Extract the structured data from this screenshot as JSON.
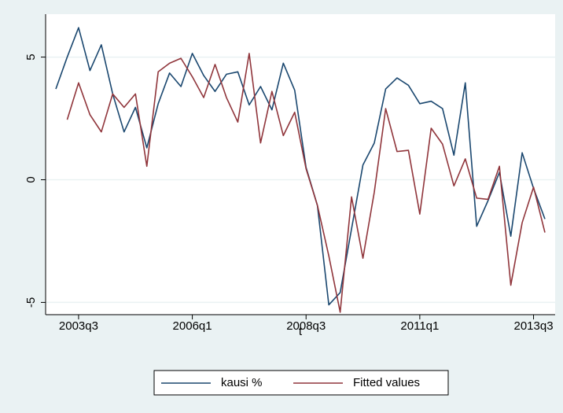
{
  "chart_data": {
    "type": "line",
    "x_label": "t",
    "categories": [
      null,
      null,
      "2003q3",
      null,
      null,
      null,
      null,
      null,
      null,
      null,
      null,
      null,
      "2006q1",
      null,
      null,
      null,
      null,
      null,
      null,
      null,
      null,
      null,
      "2008q3",
      null,
      null,
      null,
      null,
      null,
      null,
      null,
      null,
      null,
      "2011q1",
      null,
      null,
      null,
      null,
      null,
      null,
      null,
      null,
      null,
      "2013q3",
      null
    ],
    "series": [
      {
        "name": "kausi %",
        "color": "#1a476f",
        "values": [
          3.7,
          5.0,
          6.2,
          4.45,
          5.5,
          3.5,
          1.95,
          2.95,
          1.3,
          3.1,
          4.35,
          3.8,
          5.15,
          4.25,
          3.6,
          4.3,
          4.4,
          3.05,
          3.8,
          2.85,
          4.75,
          3.65,
          0.5,
          -1.05,
          -5.1,
          -4.6,
          -2.0,
          0.6,
          1.5,
          3.7,
          4.15,
          3.85,
          3.1,
          3.2,
          2.9,
          1.0,
          3.95,
          -1.9,
          -0.85,
          0.3,
          -2.3,
          1.1,
          -0.35,
          -1.6
        ]
      },
      {
        "name": "Fitted values",
        "color": "#90353b",
        "values": [
          null,
          2.45,
          3.95,
          2.65,
          1.95,
          3.5,
          2.95,
          3.5,
          0.55,
          4.4,
          4.75,
          4.95,
          4.2,
          3.35,
          4.7,
          3.35,
          2.35,
          5.15,
          1.5,
          3.6,
          1.8,
          2.75,
          0.45,
          -1.05,
          -3.1,
          -5.4,
          -0.7,
          -3.2,
          -0.5,
          2.9,
          1.15,
          1.2,
          -1.4,
          2.1,
          1.45,
          -0.25,
          0.85,
          -0.75,
          -0.8,
          0.55,
          -4.3,
          -1.75,
          -0.3,
          -2.15
        ]
      }
    ],
    "ylim": [
      -5.5,
      6.75
    ],
    "yticks": [
      -5,
      0,
      5
    ],
    "grid": true,
    "legend": "bottom"
  }
}
